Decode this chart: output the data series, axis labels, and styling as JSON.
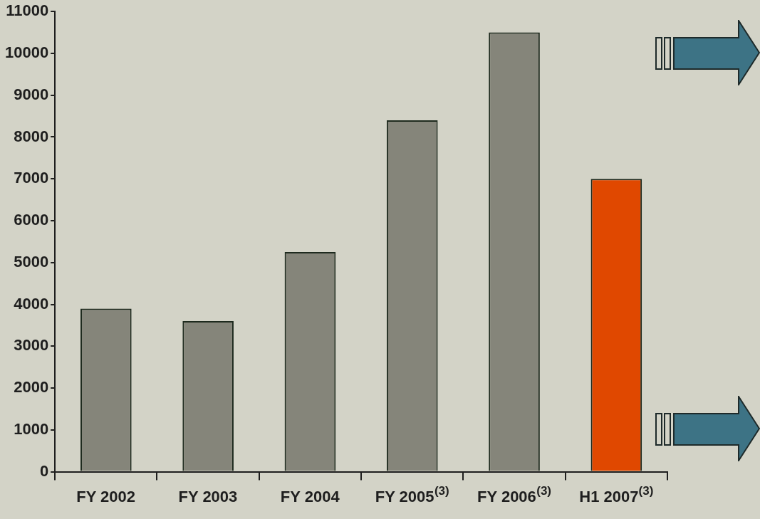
{
  "chart_data": {
    "type": "bar",
    "categories": [
      "FY 2002",
      "FY 2003",
      "FY 2004",
      "FY 2005$^{(3)}$",
      "FY 2006$^{(3)}$",
      "H1 2007$^{(3)}$"
    ],
    "values": [
      3900,
      3600,
      5250,
      8400,
      10500,
      7000
    ],
    "colors": [
      "#85857a",
      "#85857a",
      "#85857a",
      "#85857a",
      "#85857a",
      "#e04800"
    ],
    "ylim": [
      0,
      11000
    ],
    "yticks": [
      0,
      1000,
      2000,
      3000,
      4000,
      5000,
      6000,
      7000,
      8000,
      9000,
      10000,
      11000
    ],
    "grid": false,
    "legend": false
  }
}
